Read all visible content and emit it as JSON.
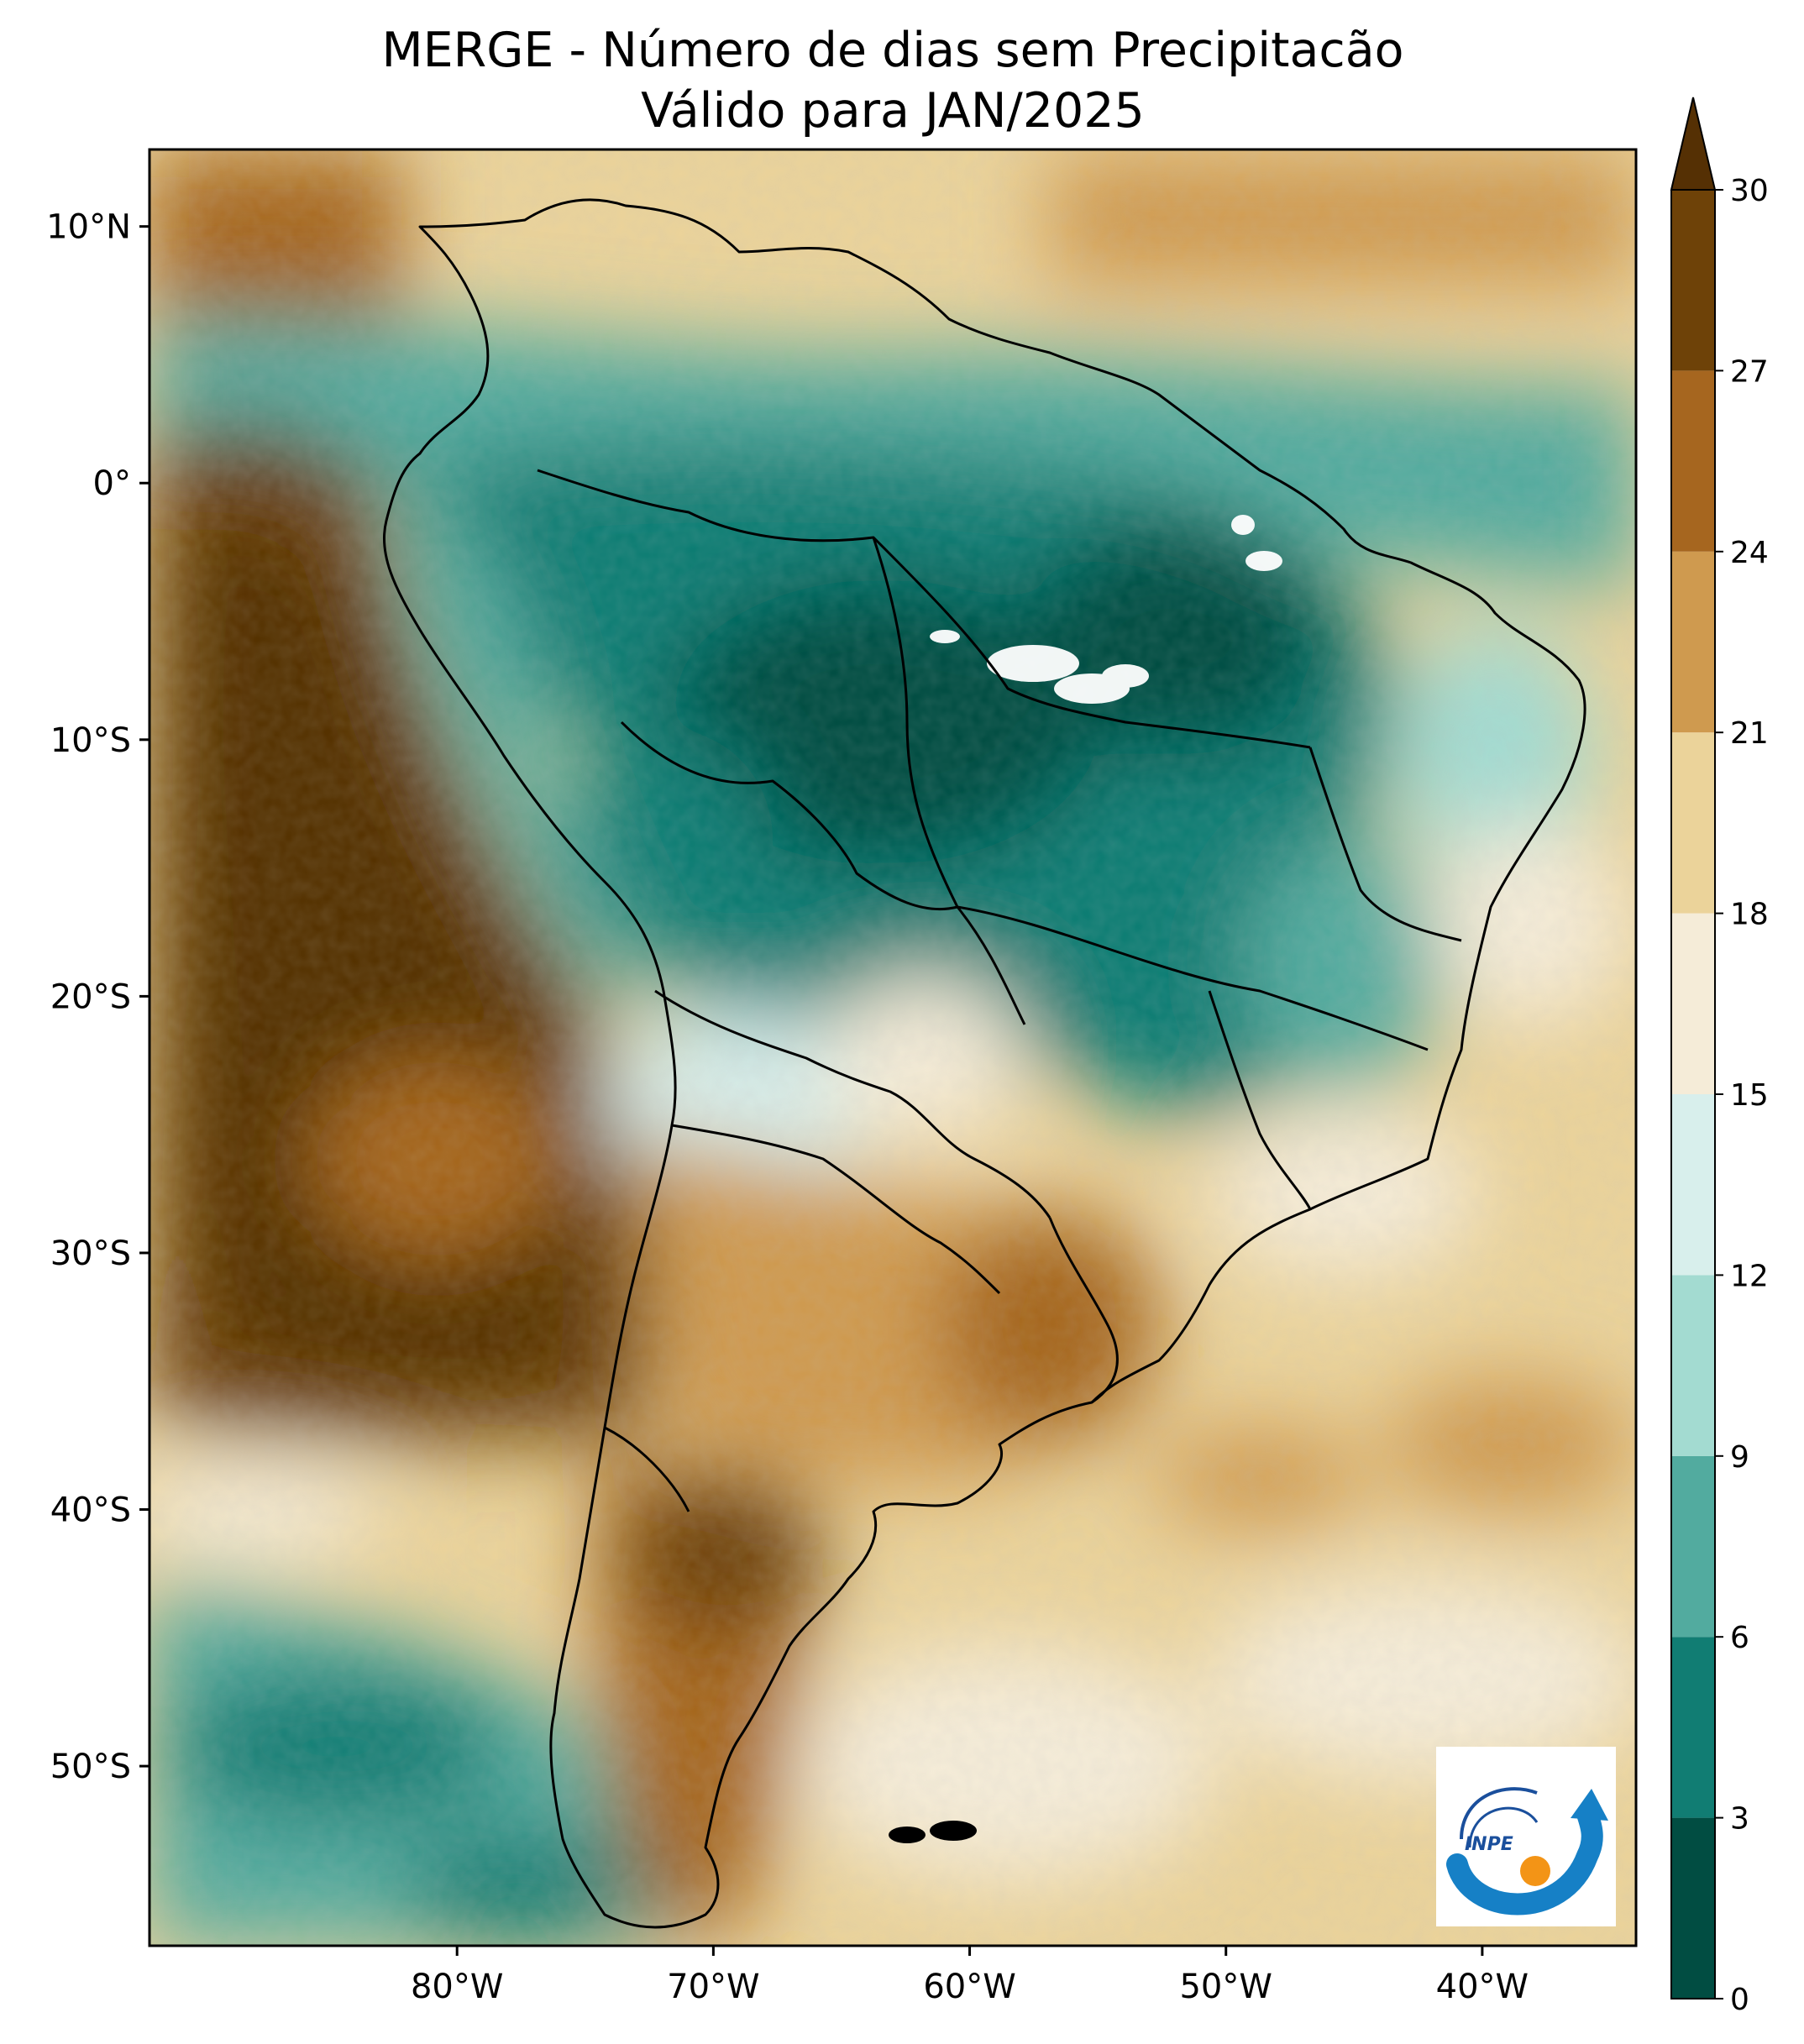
{
  "title": {
    "line1": "MERGE - Número de dias sem Precipitacão",
    "line2": "Válido para JAN/2025"
  },
  "map": {
    "lon_range": [
      -92,
      -34
    ],
    "lat_range": [
      -57,
      13
    ],
    "lon_ticks": [
      {
        "value": -80,
        "label": "80°W"
      },
      {
        "value": -70,
        "label": "70°W"
      },
      {
        "value": -60,
        "label": "60°W"
      },
      {
        "value": -50,
        "label": "50°W"
      },
      {
        "value": -40,
        "label": "40°W"
      }
    ],
    "lat_ticks": [
      {
        "value": 10,
        "label": "10°N"
      },
      {
        "value": 0,
        "label": "0°"
      },
      {
        "value": -10,
        "label": "10°S"
      },
      {
        "value": -20,
        "label": "20°S"
      },
      {
        "value": -30,
        "label": "30°S"
      },
      {
        "value": -40,
        "label": "40°S"
      },
      {
        "value": -50,
        "label": "50°S"
      }
    ]
  },
  "colorbar": {
    "levels": [
      {
        "value": 0,
        "label": "0"
      },
      {
        "value": 3,
        "label": "3"
      },
      {
        "value": 6,
        "label": "6"
      },
      {
        "value": 9,
        "label": "9"
      },
      {
        "value": 12,
        "label": "12"
      },
      {
        "value": 15,
        "label": "15"
      },
      {
        "value": 18,
        "label": "18"
      },
      {
        "value": 21,
        "label": "21"
      },
      {
        "value": 24,
        "label": "24"
      },
      {
        "value": 27,
        "label": "27"
      },
      {
        "value": 30,
        "label": "30"
      }
    ],
    "colors": [
      "#014d42",
      "#117d73",
      "#52ab9f",
      "#a3dbd1",
      "#d8efec",
      "#f5ecd8",
      "#ebd39a",
      "#cf9a4f",
      "#a6661f",
      "#6e4208",
      "#553004"
    ],
    "extend": "max"
  },
  "logo": {
    "text": "INPE"
  }
}
